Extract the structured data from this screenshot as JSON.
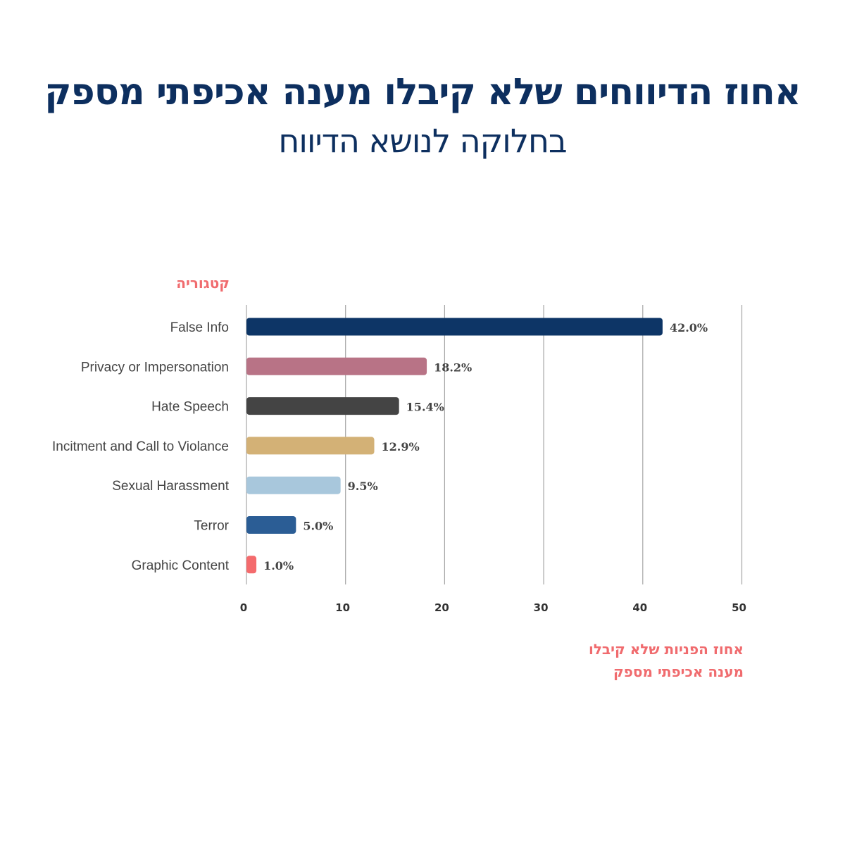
{
  "header": {
    "title": "אחוז הדיווחים שלא קיבלו מענה אכיפתי מספק",
    "subtitle": "בחלוקה לנושא הדיווח"
  },
  "axes": {
    "y_title": "קטגוריה",
    "x_title_line1": "אחוז הפניות שלא קיבלו",
    "x_title_line2": "מענה אכיפתי מספק"
  },
  "chart_data": {
    "type": "bar",
    "orientation": "horizontal",
    "title": "אחוז הדיווחים שלא קיבלו מענה אכיפתי מספק",
    "subtitle": "בחלוקה לנושא הדיווח",
    "xlabel": "אחוז הפניות שלא קיבלו מענה אכיפתי מספק",
    "ylabel": "קטגוריה",
    "categories": [
      "False Info",
      "Privacy or Impersonation",
      "Hate Speech",
      "Incitment and Call to Violance",
      "Sexual Harassment",
      "Terror",
      "Graphic Content"
    ],
    "values": [
      42.0,
      18.2,
      15.4,
      12.9,
      9.5,
      5.0,
      1.0
    ],
    "value_labels": [
      "42.0%",
      "18.2%",
      "15.4%",
      "12.9%",
      "9.5%",
      "5.0%",
      "1.0%"
    ],
    "bar_colors": [
      "#0d3566",
      "#b87386",
      "#444444",
      "#d3b176",
      "#a8c7dc",
      "#2b5d95",
      "#f46b6d"
    ],
    "xlim": [
      0,
      50
    ],
    "xticks": [
      "0",
      "10",
      "20",
      "30",
      "40",
      "50"
    ],
    "grid": true
  }
}
